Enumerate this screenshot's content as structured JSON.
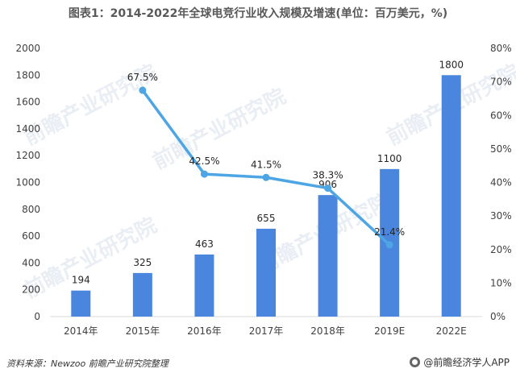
{
  "title": "图表1：2014-2022年全球电竞行业收入规模及增速(单位：百万美元，%)",
  "footer": {
    "source": "资料来源：Newzoo 前瞻产业研究院整理",
    "brand": "@前瞻经济学人APP"
  },
  "watermark_text": "前瞻产业研究院",
  "chart_data": {
    "type": "bar",
    "categories": [
      "2014年",
      "2015年",
      "2016年",
      "2017年",
      "2018年",
      "2019E",
      "2022E"
    ],
    "series": [
      {
        "type": "bar",
        "axis": "left",
        "values": [
          194,
          325,
          463,
          655,
          906,
          1100,
          1800
        ],
        "labels": [
          "194",
          "325",
          "463",
          "655",
          "906",
          "1100",
          "1800"
        ],
        "color": "#4A86DE"
      },
      {
        "type": "line",
        "axis": "right",
        "values": [
          null,
          67.5,
          42.5,
          41.5,
          38.3,
          21.4,
          null
        ],
        "labels": [
          "",
          "67.5%",
          "42.5%",
          "41.5%",
          "38.3%",
          "21.4%",
          ""
        ],
        "color": "#4DA6E3"
      }
    ],
    "left_axis": {
      "min": 0,
      "max": 2000,
      "ticks": [
        "0",
        "200",
        "400",
        "600",
        "800",
        "1000",
        "1200",
        "1400",
        "1600",
        "1800",
        "2000"
      ]
    },
    "right_axis": {
      "min": 0,
      "max": 80,
      "ticks": [
        "0%",
        "10%",
        "20%",
        "30%",
        "40%",
        "50%",
        "60%",
        "70%",
        "80%"
      ]
    },
    "grid": false
  }
}
